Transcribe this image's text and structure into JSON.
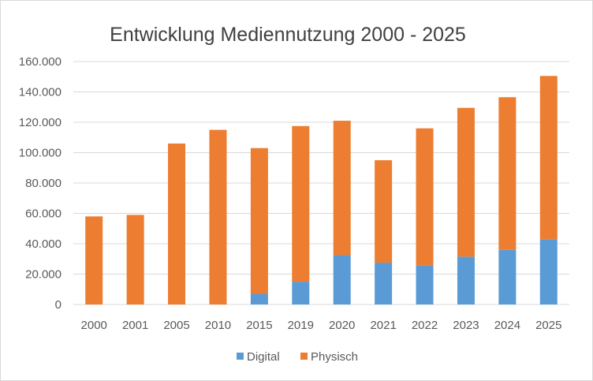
{
  "chart_data": {
    "type": "bar",
    "stacked": true,
    "title": "Entwicklung Mediennutzung 2000 - 2025",
    "xlabel": "",
    "ylabel": "",
    "ylim": [
      0,
      160000
    ],
    "yticks": [
      "0",
      "20.000",
      "40.000",
      "60.000",
      "80.000",
      "100.000",
      "120.000",
      "140.000",
      "160.000"
    ],
    "ytick_values": [
      0,
      20000,
      40000,
      60000,
      80000,
      100000,
      120000,
      140000,
      160000
    ],
    "grid": true,
    "legend_position": "bottom",
    "categories": [
      "2000",
      "2001",
      "2005",
      "2010",
      "2015",
      "2019",
      "2020",
      "2021",
      "2022",
      "2023",
      "2024",
      "2025"
    ],
    "series": [
      {
        "name": "Digital",
        "color": "#5b9bd5",
        "values": [
          0,
          0,
          0,
          0,
          7000,
          15000,
          32500,
          27500,
          25500,
          31500,
          36000,
          43000
        ]
      },
      {
        "name": "Physisch",
        "color": "#ed7d31",
        "values": [
          58000,
          59000,
          106000,
          115000,
          96000,
          102500,
          88500,
          67500,
          90500,
          98000,
          100500,
          107500
        ]
      }
    ]
  }
}
